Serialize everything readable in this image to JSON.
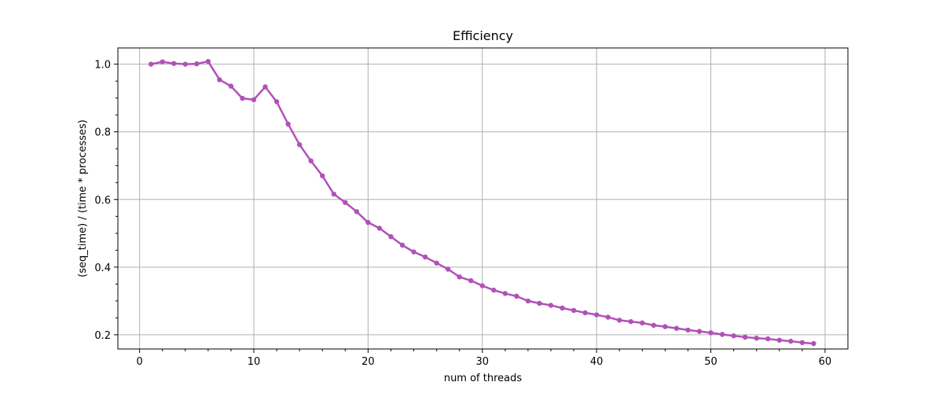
{
  "chart_data": {
    "type": "line",
    "title": "Efficiency",
    "xlabel": "num of threads",
    "ylabel": "(seq_time) / (time * processes)",
    "xlim": [
      -1.9,
      62
    ],
    "ylim": [
      0.158,
      1.048
    ],
    "xticks": [
      0,
      10,
      20,
      30,
      40,
      50,
      60
    ],
    "yticks": [
      0.2,
      0.4,
      0.6,
      0.8,
      1.0
    ],
    "ytick_labels": [
      "0.2",
      "0.4",
      "0.6",
      "0.8",
      "1.0"
    ],
    "grid": true,
    "color": "#b151b8",
    "series": [
      {
        "x": [
          1,
          2,
          3,
          4,
          5,
          6,
          7,
          8,
          9,
          10,
          11,
          12,
          13,
          14,
          15,
          16,
          17,
          18,
          19,
          20,
          21,
          22,
          23,
          24,
          25,
          26,
          27,
          28,
          29,
          30,
          31,
          32,
          33,
          34,
          35,
          36,
          37,
          38,
          39,
          40,
          41,
          42,
          43,
          44,
          45,
          46,
          47,
          48,
          49,
          50,
          51,
          52,
          53,
          54,
          55,
          56,
          57,
          58,
          59
        ],
        "y": [
          1.0,
          1.007,
          1.002,
          1.0,
          1.001,
          1.008,
          0.954,
          0.935,
          0.899,
          0.895,
          0.933,
          0.889,
          0.823,
          0.762,
          0.714,
          0.67,
          0.616,
          0.591,
          0.564,
          0.532,
          0.515,
          0.49,
          0.465,
          0.445,
          0.43,
          0.412,
          0.394,
          0.371,
          0.36,
          0.345,
          0.332,
          0.322,
          0.314,
          0.3,
          0.293,
          0.287,
          0.279,
          0.272,
          0.265,
          0.259,
          0.252,
          0.243,
          0.239,
          0.235,
          0.228,
          0.224,
          0.219,
          0.214,
          0.21,
          0.206,
          0.201,
          0.197,
          0.193,
          0.19,
          0.188,
          0.184,
          0.181,
          0.177,
          0.174
        ]
      }
    ]
  }
}
